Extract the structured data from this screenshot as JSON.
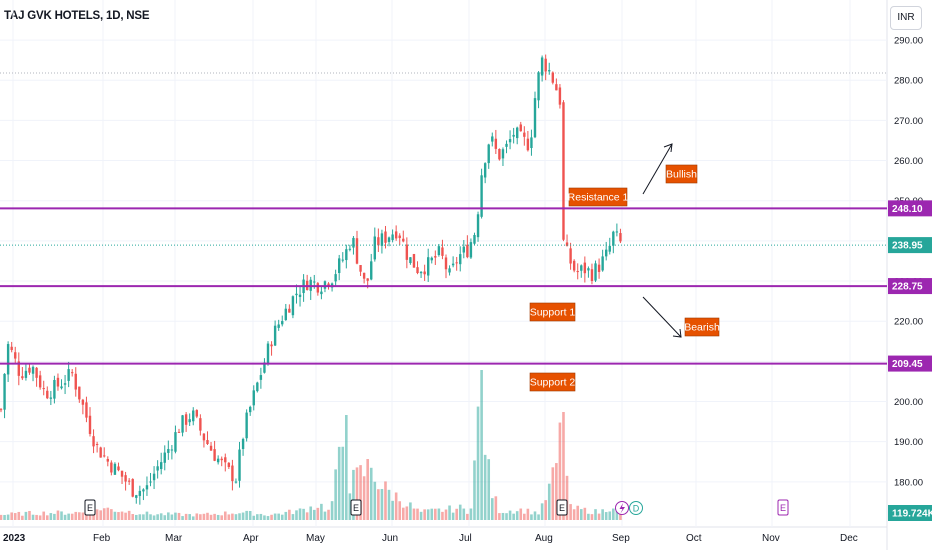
{
  "header": {
    "title": "TAJ GVK HOTELS, 1D, NSE",
    "currency": "INR"
  },
  "colors": {
    "up": "#26a69a",
    "down": "#ef5350",
    "level": "#9c27b0",
    "label_bg": "#e65100",
    "grid": "#f0f3fa"
  },
  "chart_data": {
    "type": "candlestick",
    "title": "TAJ GVK HOTELS, 1D, NSE",
    "ylim": [
      170.5,
      295
    ],
    "y_ticks": [
      "290.00",
      "280.00",
      "270.00",
      "260.00",
      "250.00",
      "240.00",
      "230.00",
      "220.00",
      "210.00",
      "200.00",
      "190.00",
      "180.00"
    ],
    "x_ticks": [
      "2023",
      "Feb",
      "Mar",
      "Apr",
      "May",
      "Jun",
      "Jul",
      "Aug",
      "Sep",
      "Oct",
      "Nov",
      "Dec"
    ],
    "price_labels": {
      "resistance": "248.10",
      "last": "238.95",
      "support1": "228.75",
      "support2": "209.45",
      "volume": "119.724K"
    },
    "levels": [
      {
        "name": "Resistance 1",
        "value": 248.1
      },
      {
        "name": "Support 1",
        "value": 228.75
      },
      {
        "name": "Support 2",
        "value": 209.45
      }
    ],
    "last_price": 238.95,
    "annotations": [
      "Resistance 1",
      "Support 1",
      "Support 2",
      "Bullish",
      "Bearish"
    ],
    "event_markers": [
      "E",
      "E",
      "E",
      "E",
      "D"
    ],
    "volume_last": "119.724K",
    "price_anchors": [
      [
        0,
        195
      ],
      [
        3,
        204
      ],
      [
        8,
        214
      ],
      [
        12,
        212
      ],
      [
        20,
        207
      ],
      [
        32,
        209
      ],
      [
        45,
        202
      ],
      [
        58,
        204
      ],
      [
        72,
        207
      ],
      [
        84,
        198
      ],
      [
        96,
        189
      ],
      [
        108,
        185
      ],
      [
        120,
        182
      ],
      [
        133,
        178
      ],
      [
        146,
        178
      ],
      [
        156,
        183
      ],
      [
        168,
        188
      ],
      [
        180,
        194
      ],
      [
        192,
        197
      ],
      [
        204,
        191
      ],
      [
        214,
        187
      ],
      [
        226,
        183
      ],
      [
        236,
        181
      ],
      [
        244,
        193
      ],
      [
        252,
        200
      ],
      [
        262,
        208
      ],
      [
        272,
        216
      ],
      [
        284,
        222
      ],
      [
        296,
        227
      ],
      [
        308,
        230
      ],
      [
        320,
        229
      ],
      [
        332,
        231
      ],
      [
        344,
        236
      ],
      [
        352,
        241
      ],
      [
        358,
        235
      ],
      [
        366,
        228
      ],
      [
        374,
        239
      ],
      [
        386,
        241
      ],
      [
        398,
        243
      ],
      [
        408,
        236
      ],
      [
        418,
        233
      ],
      [
        428,
        234
      ],
      [
        440,
        237
      ],
      [
        450,
        231
      ],
      [
        458,
        236
      ],
      [
        468,
        238
      ],
      [
        476,
        243
      ],
      [
        482,
        258
      ],
      [
        490,
        266
      ],
      [
        498,
        261
      ],
      [
        506,
        263
      ],
      [
        514,
        267
      ],
      [
        522,
        265
      ],
      [
        530,
        264
      ],
      [
        536,
        278
      ],
      [
        542,
        285
      ],
      [
        548,
        283
      ],
      [
        555,
        279
      ],
      [
        560,
        275
      ],
      [
        563,
        240
      ],
      [
        568,
        236
      ],
      [
        576,
        232
      ],
      [
        584,
        233
      ],
      [
        592,
        232
      ],
      [
        600,
        234
      ],
      [
        608,
        237
      ],
      [
        614,
        242
      ],
      [
        618,
        240
      ],
      [
        622,
        238.95
      ]
    ],
    "volume_anchors": [
      [
        0,
        6
      ],
      [
        30,
        8
      ],
      [
        90,
        9
      ],
      [
        100,
        14
      ],
      [
        150,
        7
      ],
      [
        200,
        6
      ],
      [
        240,
        9
      ],
      [
        270,
        6
      ],
      [
        300,
        11
      ],
      [
        320,
        18
      ],
      [
        330,
        9
      ],
      [
        345,
        105
      ],
      [
        350,
        42
      ],
      [
        372,
        64
      ],
      [
        380,
        40
      ],
      [
        420,
        9
      ],
      [
        460,
        14
      ],
      [
        470,
        9
      ],
      [
        481,
        150
      ],
      [
        490,
        38
      ],
      [
        500,
        10
      ],
      [
        520,
        12
      ],
      [
        540,
        8
      ],
      [
        555,
        55
      ],
      [
        562,
        108
      ],
      [
        570,
        14
      ],
      [
        600,
        9
      ],
      [
        614,
        18
      ],
      [
        620,
        6
      ]
    ]
  }
}
